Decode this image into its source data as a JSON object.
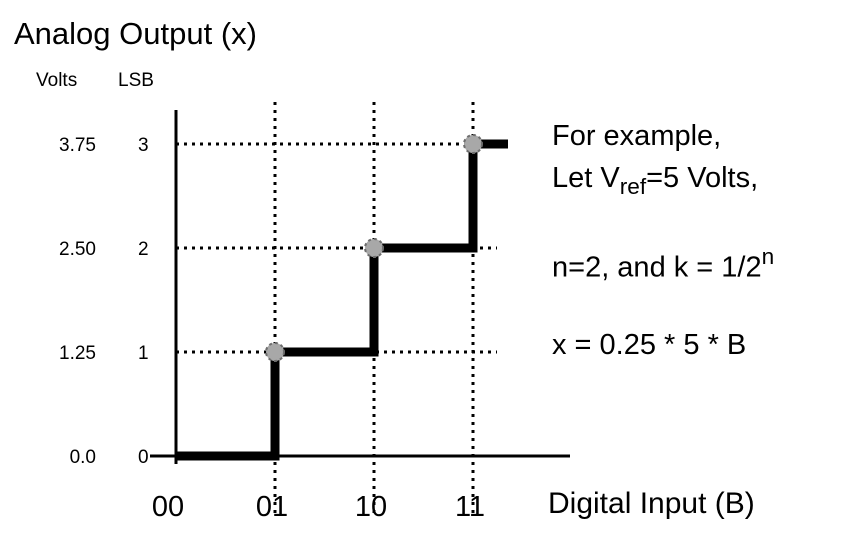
{
  "chart_data": {
    "type": "line",
    "title": "Analog Output (x)",
    "xlabel": "Digital Input (B)",
    "column_headers": {
      "volts": "Volts",
      "lsb": "LSB"
    },
    "x_categories": [
      "00",
      "01",
      "10",
      "11"
    ],
    "y_levels": [
      {
        "lsb": "0",
        "volts": "0.0",
        "value": 0
      },
      {
        "lsb": "1",
        "volts": "1.25",
        "value": 1
      },
      {
        "lsb": "2",
        "volts": "2.50",
        "value": 2
      },
      {
        "lsb": "3",
        "volts": "3.75",
        "value": 3
      }
    ],
    "series": [
      {
        "x": [
          0,
          1,
          2,
          3
        ],
        "y": [
          0,
          1,
          2,
          3
        ],
        "step": "post"
      }
    ],
    "grid": "dotted at data points",
    "colors": {
      "line": "#000000",
      "marker": "#a8a8a8"
    }
  },
  "annotation": {
    "line1": "For example,",
    "line2_prefix": "Let V",
    "line2_sub": "ref",
    "line2_suffix": "=5 Volts,",
    "line3_prefix": "n=2, and k = 1/2",
    "line3_sup": "n",
    "line4": "x = 0.25 * 5 * B"
  }
}
